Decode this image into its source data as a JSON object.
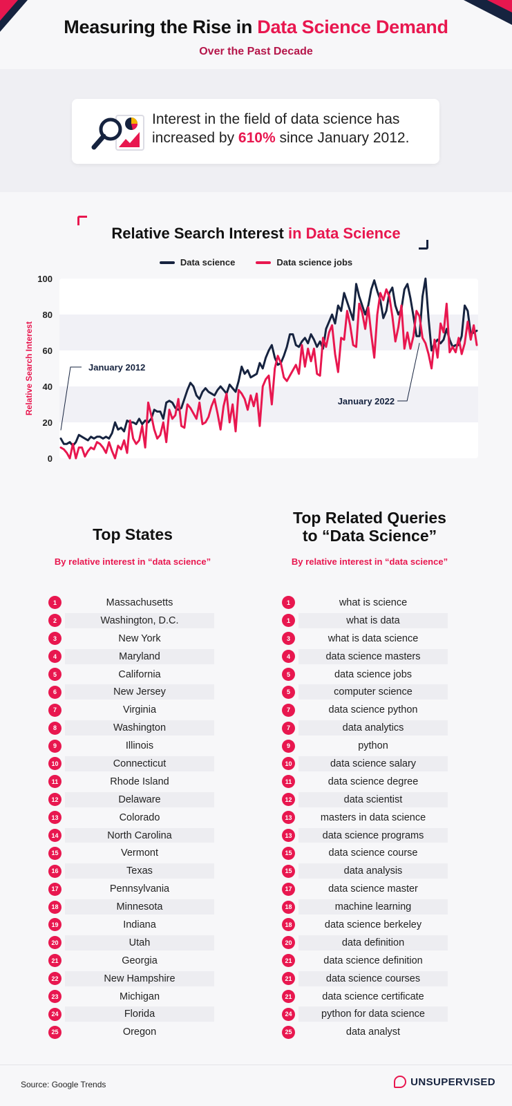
{
  "header": {
    "title_main": "Measuring the Rise in ",
    "title_accent": "Data Science Demand",
    "subtitle": "Over the Past Decade"
  },
  "stat": {
    "text_before": "Interest in the field of data science has increased by ",
    "highlight": "610%",
    "text_after": " since January 2012.",
    "icon": "magnifier-chart-icon"
  },
  "chart_data": {
    "type": "line",
    "title_main": "Relative Search Interest ",
    "title_accent": "in Data Science",
    "ylabel": "Relative Search Interest",
    "ylim": [
      0,
      100
    ],
    "yticks": [
      "0",
      "20",
      "40",
      "60",
      "80",
      "100"
    ],
    "grid_bands": true,
    "legend_placement": "top-center",
    "annotations": [
      {
        "text": "January 2012",
        "series": 0,
        "index": 0
      },
      {
        "text": "January 2022",
        "series": 0,
        "index": 119
      }
    ],
    "series": [
      {
        "name": "Data science",
        "color": "#16233f",
        "values": [
          11,
          8,
          8,
          9,
          7,
          9,
          13,
          12,
          11,
          10,
          12,
          11,
          12,
          12,
          11,
          12,
          11,
          14,
          20,
          16,
          17,
          15,
          21,
          20,
          20,
          19,
          22,
          19,
          21,
          20,
          22,
          27,
          26,
          26,
          22,
          31,
          32,
          31,
          28,
          27,
          28,
          33,
          38,
          42,
          40,
          35,
          33,
          37,
          39,
          37,
          36,
          35,
          38,
          40,
          38,
          36,
          41,
          39,
          37,
          43,
          51,
          47,
          49,
          45,
          46,
          47,
          53,
          50,
          56,
          60,
          63,
          56,
          52,
          53,
          57,
          62,
          69,
          69,
          63,
          62,
          65,
          67,
          64,
          69,
          66,
          62,
          65,
          61,
          72,
          76,
          80,
          75,
          85,
          82,
          92,
          87,
          82,
          77,
          97,
          90,
          85,
          80,
          85,
          94,
          99,
          93,
          88,
          78,
          82,
          92,
          95,
          85,
          80,
          83,
          94,
          97,
          89,
          79,
          68,
          68,
          90,
          100,
          78,
          60,
          64,
          66,
          64,
          66,
          72,
          66,
          62,
          63,
          63,
          68,
          85,
          82,
          69,
          70,
          71
        ]
      },
      {
        "name": "Data science jobs",
        "color": "#e8174f",
        "values": [
          6,
          5,
          3,
          0,
          8,
          0,
          6,
          6,
          1,
          4,
          6,
          5,
          9,
          8,
          6,
          3,
          9,
          4,
          0,
          7,
          5,
          10,
          3,
          21,
          11,
          8,
          10,
          18,
          6,
          31,
          24,
          16,
          11,
          13,
          20,
          9,
          27,
          22,
          24,
          33,
          18,
          17,
          30,
          28,
          25,
          22,
          31,
          19,
          20,
          23,
          29,
          33,
          25,
          16,
          29,
          36,
          20,
          30,
          15,
          38,
          36,
          33,
          27,
          35,
          29,
          36,
          18,
          40,
          44,
          46,
          30,
          50,
          57,
          53,
          45,
          43,
          46,
          49,
          52,
          47,
          63,
          51,
          61,
          54,
          61,
          47,
          46,
          67,
          62,
          70,
          74,
          58,
          48,
          67,
          66,
          82,
          74,
          63,
          62,
          86,
          81,
          72,
          84,
          69,
          56,
          80,
          92,
          88,
          94,
          90,
          79,
          65,
          73,
          85,
          61,
          70,
          61,
          68,
          82,
          79,
          67,
          64,
          58,
          50,
          66,
          56,
          75,
          70,
          86,
          59,
          62,
          59,
          67,
          58,
          64,
          76,
          66,
          74,
          63
        ]
      }
    ]
  },
  "states": {
    "title": "Top States",
    "subtitle": "By relative interest in “data science”",
    "items": [
      {
        "rank": "1",
        "name": "Massachusetts"
      },
      {
        "rank": "2",
        "name": "Washington, D.C."
      },
      {
        "rank": "3",
        "name": "New York"
      },
      {
        "rank": "4",
        "name": "Maryland"
      },
      {
        "rank": "5",
        "name": "California"
      },
      {
        "rank": "6",
        "name": "New Jersey"
      },
      {
        "rank": "7",
        "name": "Virginia"
      },
      {
        "rank": "8",
        "name": "Washington"
      },
      {
        "rank": "9",
        "name": "Illinois"
      },
      {
        "rank": "10",
        "name": "Connecticut"
      },
      {
        "rank": "11",
        "name": "Rhode Island"
      },
      {
        "rank": "12",
        "name": "Delaware"
      },
      {
        "rank": "13",
        "name": "Colorado"
      },
      {
        "rank": "14",
        "name": "North Carolina"
      },
      {
        "rank": "15",
        "name": "Vermont"
      },
      {
        "rank": "16",
        "name": "Texas"
      },
      {
        "rank": "17",
        "name": "Pennsylvania"
      },
      {
        "rank": "18",
        "name": "Minnesota"
      },
      {
        "rank": "19",
        "name": "Indiana"
      },
      {
        "rank": "20",
        "name": "Utah"
      },
      {
        "rank": "21",
        "name": "Georgia"
      },
      {
        "rank": "22",
        "name": "New Hampshire"
      },
      {
        "rank": "23",
        "name": "Michigan"
      },
      {
        "rank": "24",
        "name": "Florida"
      },
      {
        "rank": "25",
        "name": "Oregon"
      }
    ]
  },
  "queries": {
    "title_line1": "Top Related Queries",
    "title_line2": "to “Data Science”",
    "subtitle": "By relative interest in “data science”",
    "items": [
      {
        "rank": "1",
        "name": "what is science"
      },
      {
        "rank": "1",
        "name": "what is data"
      },
      {
        "rank": "3",
        "name": "what is data science"
      },
      {
        "rank": "4",
        "name": "data science masters"
      },
      {
        "rank": "5",
        "name": "data science jobs"
      },
      {
        "rank": "5",
        "name": "computer science"
      },
      {
        "rank": "7",
        "name": "data science python"
      },
      {
        "rank": "7",
        "name": "data analytics"
      },
      {
        "rank": "9",
        "name": "python"
      },
      {
        "rank": "10",
        "name": "data science salary"
      },
      {
        "rank": "11",
        "name": "data science degree"
      },
      {
        "rank": "12",
        "name": "data scientist"
      },
      {
        "rank": "13",
        "name": "masters in data science"
      },
      {
        "rank": "13",
        "name": "data science programs"
      },
      {
        "rank": "15",
        "name": "data science course"
      },
      {
        "rank": "15",
        "name": "data analysis"
      },
      {
        "rank": "17",
        "name": "data science master"
      },
      {
        "rank": "18",
        "name": "machine learning"
      },
      {
        "rank": "18",
        "name": "data science berkeley"
      },
      {
        "rank": "20",
        "name": "data definition"
      },
      {
        "rank": "21",
        "name": "data science definition"
      },
      {
        "rank": "21",
        "name": "data science courses"
      },
      {
        "rank": "21",
        "name": "data science certificate"
      },
      {
        "rank": "24",
        "name": "python for data science"
      },
      {
        "rank": "25",
        "name": "data analyst"
      }
    ]
  },
  "footer": {
    "source": "Source: Google Trends",
    "logo_text": "UNSUPERVISED"
  }
}
